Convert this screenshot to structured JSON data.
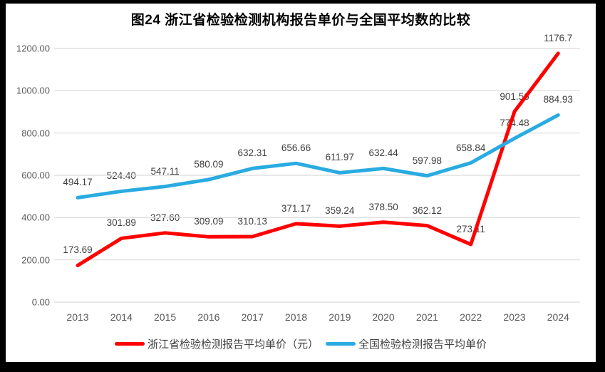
{
  "title": "图24  浙江省检验检测机构报告单价与全国平均数的比较",
  "chart_data": {
    "type": "line",
    "title": "图24  浙江省检验检测机构报告单价与全国平均数的比较",
    "categories": [
      "2013",
      "2014",
      "2015",
      "2016",
      "2017",
      "2018",
      "2019",
      "2020",
      "2021",
      "2022",
      "2023",
      "2024"
    ],
    "series": [
      {
        "name": "浙江省检验检测报告平均单价（元）",
        "color": "#FF0000",
        "values": [
          173.69,
          301.89,
          327.6,
          309.09,
          310.13,
          371.17,
          359.24,
          378.5,
          362.12,
          273.11,
          901.56,
          1176.7
        ],
        "labels": [
          "173.69",
          "301.89",
          "327.60",
          "309.09",
          "310.13",
          "371.17",
          "359.24",
          "378.50",
          "362.12",
          "273.11",
          "901.56",
          "1176.7"
        ]
      },
      {
        "name": "全国检验检测报告平均单价",
        "color": "#29ABE2",
        "values": [
          494.17,
          524.4,
          547.11,
          580.09,
          632.31,
          656.66,
          611.97,
          632.44,
          597.98,
          658.84,
          774.48,
          884.93
        ],
        "labels": [
          "494.17",
          "524.40",
          "547.11",
          "580.09",
          "632.31",
          "656.66",
          "611.97",
          "632.44",
          "597.98",
          "658.84",
          "774.48",
          "884.93"
        ]
      }
    ],
    "ylim": [
      0,
      1200
    ],
    "ytick_step": 200,
    "ytick_labels": [
      "0.00",
      "200.00",
      "400.00",
      "600.00",
      "800.00",
      "1000.00",
      "1200.00"
    ],
    "grid": "horizontal",
    "legend_position": "bottom",
    "data_labels": true
  },
  "colors": {
    "frame_bg": "#000000",
    "chart_bg": "#FFFFFF",
    "grid": "#D9D9D9",
    "axis_text": "#595959",
    "label_text": "#3F3F3F",
    "title_text": "#000000",
    "legend_text": "#3F3F3F"
  }
}
